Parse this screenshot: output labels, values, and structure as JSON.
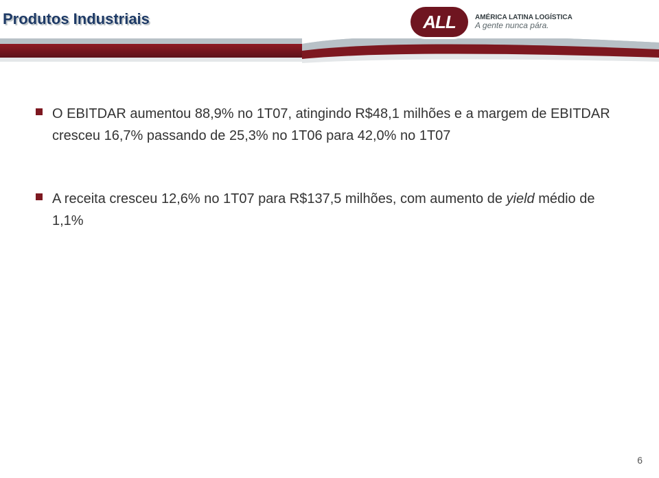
{
  "title": "Produtos Industriais",
  "title_fontsize": 22,
  "title_color_front": "#1e3a66",
  "title_color_shadow": "#bfc6c9",
  "logo": {
    "badge_text": "ALL",
    "badge_fontsize": 26,
    "line1": "AMÉRICA LATINA LOGÍSTICA",
    "line1_fontsize": 10,
    "line1_weight": "700",
    "line2": "A gente nunca pára.",
    "line2_fontsize": 12
  },
  "band": {
    "top_color": "#b8c1c7",
    "mid_color_start": "#8f1a24",
    "mid_color_end": "#5c121a",
    "bot_color": "#e4e7e9"
  },
  "bullets": [
    {
      "prefix": "O EBITDAR aumentou 88,9% no 1T07, atingindo R$48,1 milhões e a margem de EBITDAR cresceu 16,7% passando de 25,3% no 1T06 para 42,0% no 1T07"
    },
    {
      "prefix": "A receita cresceu 12,6% no 1T07 para R$137,5 milhões, com aumento de ",
      "italic": "yield",
      "suffix": " médio de 1,1%"
    }
  ],
  "body_fontsize": 20,
  "body_color": "#333333",
  "bullet_square_color": "#7d1820",
  "page_number": "6",
  "page_number_fontsize": 14,
  "background_color": "#ffffff",
  "slide_width": 960,
  "slide_height": 697
}
